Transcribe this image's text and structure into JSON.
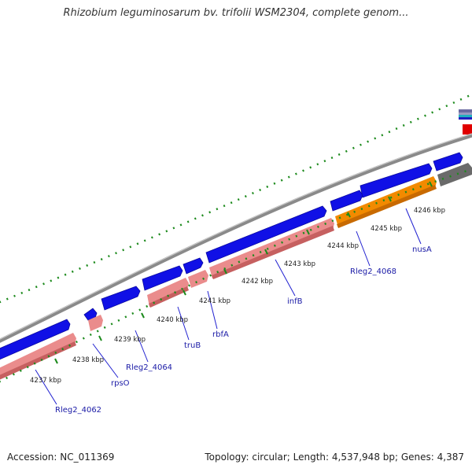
{
  "title": "Rhizobium leguminosarum bv. trifolii WSM2304, complete genom...",
  "footer": {
    "accession": "Accession: NC_011369",
    "summary": "Topology: circular; Length: 4,537,948 bp; Genes: 4,387"
  },
  "ticks": [
    "4237 kbp",
    "4238 kbp",
    "4239 kbp",
    "4240 kbp",
    "4241 kbp",
    "4242 kbp",
    "4243 kbp",
    "4244 kbp",
    "4245 kbp",
    "4246 kbp"
  ],
  "gene_labels": [
    "Rleg2_4062",
    "rpsO",
    "Rleg2_4064",
    "truB",
    "rbfA",
    "infB",
    "Rleg2_4068",
    "nusA"
  ],
  "colors": {
    "backbone": "#8a8a8a",
    "forward_cds": "#1010e6",
    "reverse_cds": "#e88a8a",
    "highlighted_gene": "#f28a00",
    "ticks": "#1c8a1c",
    "labels": "#1a1aa6",
    "leader_lines": "#2020d0"
  }
}
